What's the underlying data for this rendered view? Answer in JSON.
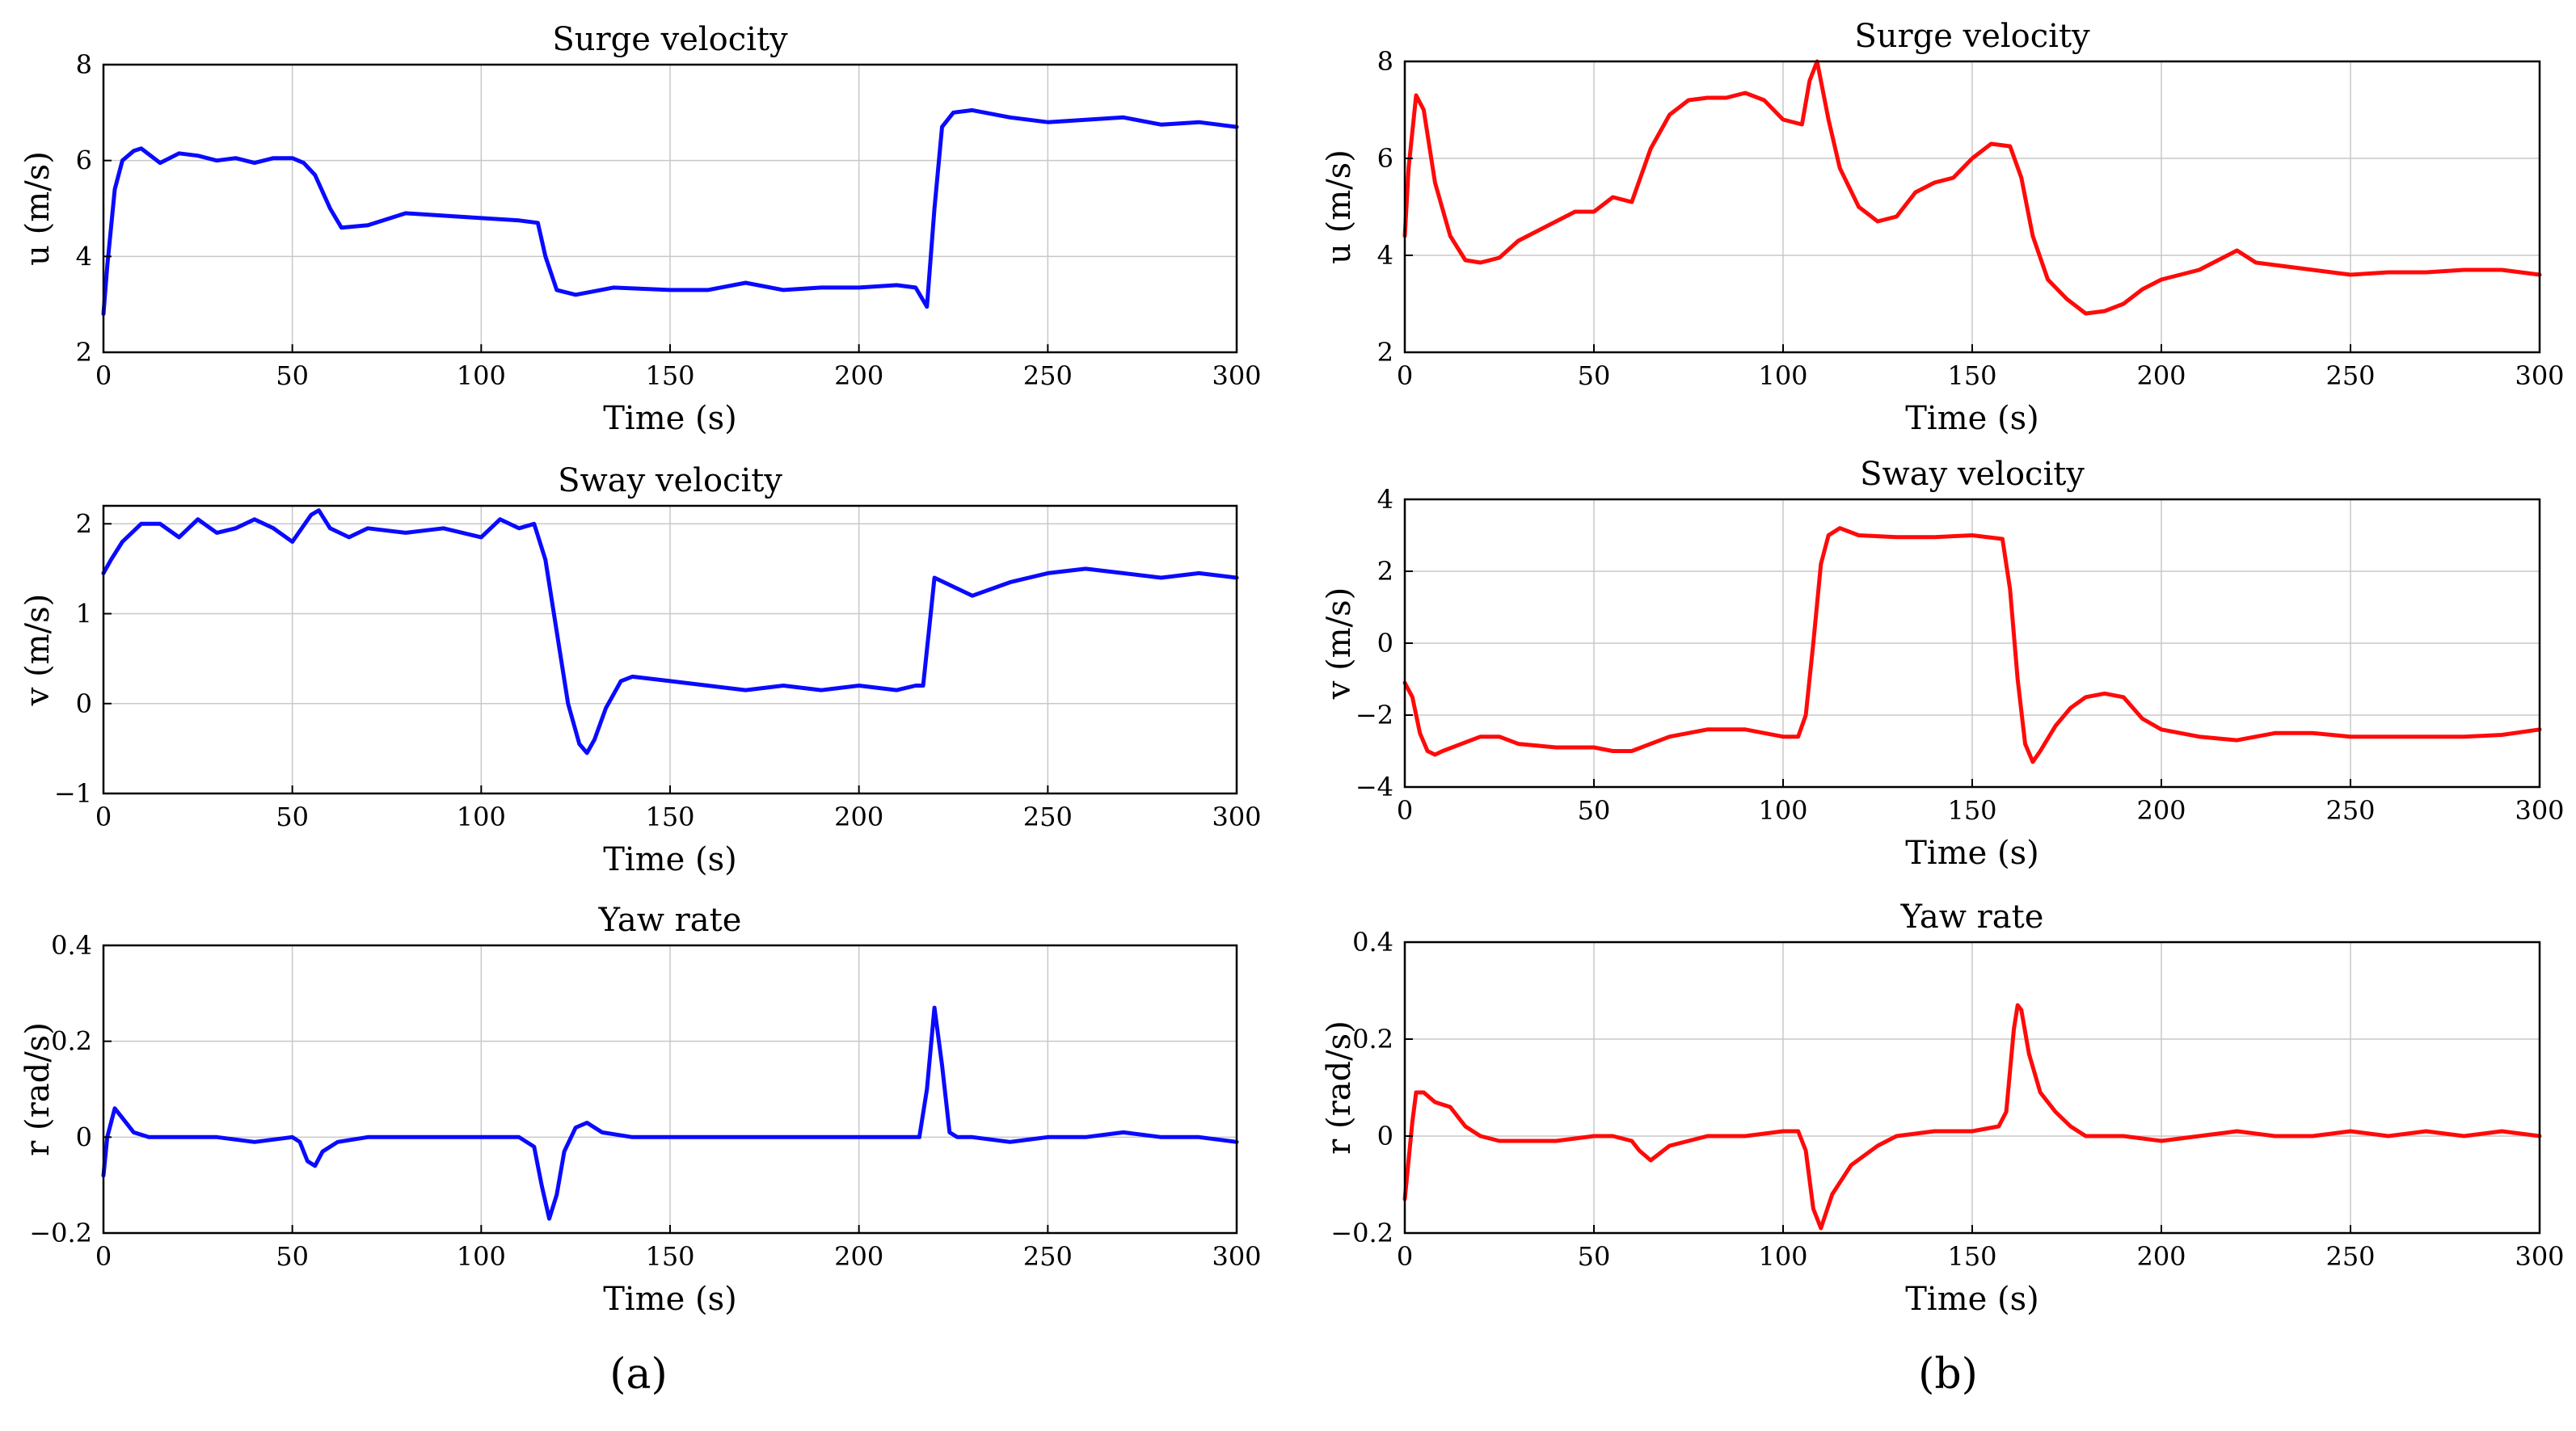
{
  "panel_labels": [
    "(a)",
    "(b)"
  ],
  "colors": {
    "a": "#0a0aff",
    "b": "#ff0a0a"
  },
  "chart_data": [
    {
      "type": "line",
      "panel": "a",
      "title": "Surge velocity",
      "xlabel": "Time (s)",
      "ylabel": "u (m/s)",
      "xlim": [
        0,
        300
      ],
      "ylim": [
        2,
        8
      ],
      "xticks": [
        0,
        50,
        100,
        150,
        200,
        250,
        300
      ],
      "yticks": [
        2,
        4,
        6,
        8
      ],
      "grid": true,
      "series": [
        {
          "name": "u",
          "color": "#0a0aff",
          "x": [
            0,
            1,
            3,
            5,
            8,
            10,
            15,
            20,
            25,
            30,
            35,
            40,
            45,
            50,
            53,
            56,
            60,
            63,
            70,
            80,
            90,
            100,
            110,
            115,
            117,
            120,
            125,
            135,
            150,
            160,
            170,
            180,
            190,
            200,
            210,
            215,
            218,
            220,
            222,
            225,
            230,
            240,
            250,
            260,
            270,
            280,
            290,
            300
          ],
          "y": [
            2.8,
            3.8,
            5.4,
            6.0,
            6.2,
            6.25,
            5.95,
            6.15,
            6.1,
            6.0,
            6.05,
            5.95,
            6.05,
            6.05,
            5.95,
            5.7,
            5.0,
            4.6,
            4.65,
            4.9,
            4.85,
            4.8,
            4.75,
            4.7,
            4.0,
            3.3,
            3.2,
            3.35,
            3.3,
            3.3,
            3.45,
            3.3,
            3.35,
            3.35,
            3.4,
            3.35,
            2.95,
            5.0,
            6.7,
            7.0,
            7.05,
            6.9,
            6.8,
            6.85,
            6.9,
            6.75,
            6.8,
            6.7
          ]
        }
      ]
    },
    {
      "type": "line",
      "panel": "a",
      "title": "Sway velocity",
      "xlabel": "Time (s)",
      "ylabel": "v (m/s)",
      "xlim": [
        0,
        300
      ],
      "ylim": [
        -1,
        2.2
      ],
      "xticks": [
        0,
        50,
        100,
        150,
        200,
        250,
        300
      ],
      "yticks": [
        -1,
        0,
        1,
        2
      ],
      "grid": true,
      "series": [
        {
          "name": "v",
          "color": "#0a0aff",
          "x": [
            0,
            2,
            5,
            10,
            15,
            20,
            25,
            30,
            35,
            40,
            45,
            50,
            55,
            57,
            60,
            65,
            70,
            80,
            90,
            100,
            105,
            110,
            114,
            117,
            120,
            123,
            126,
            128,
            130,
            133,
            137,
            140,
            150,
            160,
            170,
            180,
            190,
            200,
            210,
            215,
            217,
            219,
            220,
            225,
            230,
            240,
            250,
            260,
            270,
            280,
            290,
            300
          ],
          "y": [
            1.45,
            1.6,
            1.8,
            2.0,
            2.0,
            1.85,
            2.05,
            1.9,
            1.95,
            2.05,
            1.95,
            1.8,
            2.1,
            2.15,
            1.95,
            1.85,
            1.95,
            1.9,
            1.95,
            1.85,
            2.05,
            1.95,
            2.0,
            1.6,
            0.8,
            0.0,
            -0.45,
            -0.55,
            -0.4,
            -0.05,
            0.25,
            0.3,
            0.25,
            0.2,
            0.15,
            0.2,
            0.15,
            0.2,
            0.15,
            0.2,
            0.2,
            1.0,
            1.4,
            1.3,
            1.2,
            1.35,
            1.45,
            1.5,
            1.45,
            1.4,
            1.45,
            1.4
          ]
        }
      ]
    },
    {
      "type": "line",
      "panel": "a",
      "title": "Yaw rate",
      "xlabel": "Time (s)",
      "ylabel": "r (rad/s)",
      "xlim": [
        0,
        300
      ],
      "ylim": [
        -0.2,
        0.4
      ],
      "xticks": [
        0,
        50,
        100,
        150,
        200,
        250,
        300
      ],
      "yticks": [
        -0.2,
        0,
        0.2,
        0.4
      ],
      "grid": true,
      "series": [
        {
          "name": "r",
          "color": "#0a0aff",
          "x": [
            0,
            1,
            3,
            5,
            8,
            12,
            20,
            30,
            40,
            50,
            52,
            54,
            56,
            58,
            62,
            70,
            80,
            90,
            100,
            110,
            114,
            116,
            118,
            120,
            122,
            125,
            128,
            132,
            140,
            150,
            160,
            170,
            180,
            190,
            200,
            210,
            216,
            218,
            220,
            222,
            224,
            226,
            230,
            240,
            250,
            260,
            270,
            280,
            290,
            300
          ],
          "y": [
            -0.08,
            0.0,
            0.06,
            0.04,
            0.01,
            0.0,
            0.0,
            0.0,
            -0.01,
            0.0,
            -0.01,
            -0.05,
            -0.06,
            -0.03,
            -0.01,
            0.0,
            0.0,
            0.0,
            0.0,
            0.0,
            -0.02,
            -0.1,
            -0.17,
            -0.12,
            -0.03,
            0.02,
            0.03,
            0.01,
            0.0,
            0.0,
            0.0,
            0.0,
            0.0,
            0.0,
            0.0,
            0.0,
            0.0,
            0.1,
            0.27,
            0.15,
            0.01,
            0.0,
            0.0,
            -0.01,
            0.0,
            0.0,
            0.01,
            0.0,
            0.0,
            -0.01
          ]
        }
      ]
    },
    {
      "type": "line",
      "panel": "b",
      "title": "Surge velocity",
      "xlabel": "Time (s)",
      "ylabel": "u (m/s)",
      "xlim": [
        0,
        300
      ],
      "ylim": [
        2,
        8
      ],
      "xticks": [
        0,
        50,
        100,
        150,
        200,
        250,
        300
      ],
      "yticks": [
        2,
        4,
        6,
        8
      ],
      "grid": true,
      "series": [
        {
          "name": "u",
          "color": "#ff0a0a",
          "x": [
            0,
            1,
            3,
            5,
            8,
            12,
            16,
            20,
            25,
            30,
            35,
            40,
            45,
            50,
            55,
            60,
            65,
            70,
            75,
            80,
            85,
            90,
            95,
            100,
            105,
            107,
            109,
            112,
            115,
            120,
            125,
            130,
            135,
            140,
            145,
            150,
            155,
            160,
            163,
            166,
            170,
            175,
            180,
            185,
            190,
            195,
            200,
            210,
            215,
            220,
            225,
            230,
            240,
            250,
            260,
            270,
            280,
            290,
            300
          ],
          "y": [
            4.4,
            5.8,
            7.3,
            7.0,
            5.5,
            4.4,
            3.9,
            3.85,
            3.95,
            4.3,
            4.5,
            4.7,
            4.9,
            4.9,
            5.2,
            5.1,
            6.2,
            6.9,
            7.2,
            7.25,
            7.25,
            7.35,
            7.2,
            6.8,
            6.7,
            7.6,
            8.0,
            6.8,
            5.8,
            5.0,
            4.7,
            4.8,
            5.3,
            5.5,
            5.6,
            6.0,
            6.3,
            6.25,
            5.6,
            4.4,
            3.5,
            3.1,
            2.8,
            2.85,
            3.0,
            3.3,
            3.5,
            3.7,
            3.9,
            4.1,
            3.85,
            3.8,
            3.7,
            3.6,
            3.65,
            3.65,
            3.7,
            3.7,
            3.6
          ]
        }
      ]
    },
    {
      "type": "line",
      "panel": "b",
      "title": "Sway velocity",
      "xlabel": "Time (s)",
      "ylabel": "v (m/s)",
      "xlim": [
        0,
        300
      ],
      "ylim": [
        -4,
        4
      ],
      "xticks": [
        0,
        50,
        100,
        150,
        200,
        250,
        300
      ],
      "yticks": [
        -4,
        -2,
        0,
        2,
        4
      ],
      "grid": true,
      "series": [
        {
          "name": "v",
          "color": "#ff0a0a",
          "x": [
            0,
            2,
            4,
            6,
            8,
            10,
            15,
            20,
            25,
            30,
            40,
            50,
            55,
            60,
            70,
            80,
            90,
            100,
            104,
            106,
            108,
            110,
            112,
            115,
            120,
            130,
            140,
            150,
            158,
            160,
            162,
            164,
            166,
            168,
            172,
            176,
            180,
            185,
            190,
            195,
            200,
            210,
            220,
            230,
            240,
            250,
            260,
            270,
            280,
            290,
            300
          ],
          "y": [
            -1.1,
            -1.5,
            -2.5,
            -3.0,
            -3.1,
            -3.0,
            -2.8,
            -2.6,
            -2.6,
            -2.8,
            -2.9,
            -2.9,
            -3.0,
            -3.0,
            -2.6,
            -2.4,
            -2.4,
            -2.6,
            -2.6,
            -2.0,
            0.0,
            2.2,
            3.0,
            3.2,
            3.0,
            2.95,
            2.95,
            3.0,
            2.9,
            1.5,
            -1.0,
            -2.8,
            -3.3,
            -3.0,
            -2.3,
            -1.8,
            -1.5,
            -1.4,
            -1.5,
            -2.1,
            -2.4,
            -2.6,
            -2.7,
            -2.5,
            -2.5,
            -2.6,
            -2.6,
            -2.6,
            -2.6,
            -2.55,
            -2.4
          ]
        }
      ]
    },
    {
      "type": "line",
      "panel": "b",
      "title": "Yaw rate",
      "xlabel": "Time (s)",
      "ylabel": "r (rad/s)",
      "xlim": [
        0,
        300
      ],
      "ylim": [
        -0.2,
        0.4
      ],
      "xticks": [
        0,
        50,
        100,
        150,
        200,
        250,
        300
      ],
      "yticks": [
        -0.2,
        0,
        0.2,
        0.4
      ],
      "grid": true,
      "series": [
        {
          "name": "r",
          "color": "#ff0a0a",
          "x": [
            0,
            1,
            2,
            3,
            5,
            8,
            12,
            16,
            20,
            25,
            30,
            40,
            50,
            55,
            60,
            62,
            65,
            70,
            80,
            90,
            100,
            104,
            106,
            108,
            110,
            113,
            118,
            125,
            130,
            140,
            150,
            157,
            159,
            161,
            162,
            163,
            165,
            168,
            172,
            176,
            180,
            190,
            200,
            210,
            220,
            230,
            240,
            250,
            260,
            270,
            280,
            290,
            300
          ],
          "y": [
            -0.13,
            -0.05,
            0.03,
            0.09,
            0.09,
            0.07,
            0.06,
            0.02,
            0.0,
            -0.01,
            -0.01,
            -0.01,
            0.0,
            0.0,
            -0.01,
            -0.03,
            -0.05,
            -0.02,
            0.0,
            0.0,
            0.01,
            0.01,
            -0.03,
            -0.15,
            -0.19,
            -0.12,
            -0.06,
            -0.02,
            0.0,
            0.01,
            0.01,
            0.02,
            0.05,
            0.22,
            0.27,
            0.26,
            0.17,
            0.09,
            0.05,
            0.02,
            0.0,
            0.0,
            -0.01,
            0.0,
            0.01,
            0.0,
            0.0,
            0.01,
            0.0,
            0.01,
            0.0,
            0.01,
            0.0
          ]
        }
      ]
    }
  ]
}
